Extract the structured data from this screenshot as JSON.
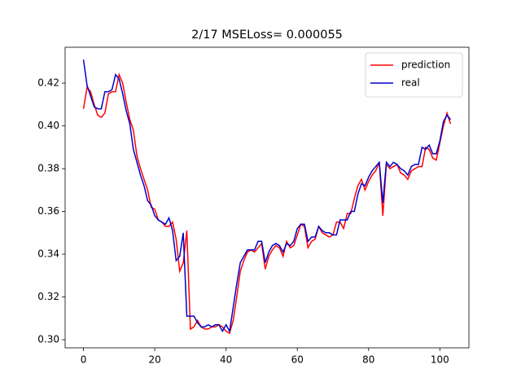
{
  "chart_data": {
    "type": "line",
    "title": "2/17 MSELoss= 0.000055",
    "x": [
      0,
      1,
      2,
      3,
      4,
      5,
      6,
      7,
      8,
      9,
      10,
      11,
      12,
      13,
      14,
      15,
      16,
      17,
      18,
      19,
      20,
      21,
      22,
      23,
      24,
      25,
      26,
      27,
      28,
      29,
      30,
      31,
      32,
      33,
      34,
      35,
      36,
      37,
      38,
      39,
      40,
      41,
      42,
      43,
      44,
      45,
      46,
      47,
      48,
      49,
      50,
      51,
      52,
      53,
      54,
      55,
      56,
      57,
      58,
      59,
      60,
      61,
      62,
      63,
      64,
      65,
      66,
      67,
      68,
      69,
      70,
      71,
      72,
      73,
      74,
      75,
      76,
      77,
      78,
      79,
      80,
      81,
      82,
      83,
      84,
      85,
      86,
      87,
      88,
      89,
      90,
      91,
      92,
      93,
      94,
      95,
      96,
      97,
      98,
      99,
      100,
      101,
      102,
      103
    ],
    "series": [
      {
        "name": "prediction",
        "color": "#ff0000",
        "values": [
          0.408,
          0.418,
          0.416,
          0.41,
          0.405,
          0.404,
          0.406,
          0.415,
          0.416,
          0.416,
          0.424,
          0.42,
          0.411,
          0.403,
          0.398,
          0.386,
          0.38,
          0.375,
          0.37,
          0.362,
          0.361,
          0.356,
          0.355,
          0.353,
          0.353,
          0.355,
          0.347,
          0.332,
          0.336,
          0.351,
          0.305,
          0.306,
          0.309,
          0.306,
          0.305,
          0.305,
          0.306,
          0.306,
          0.307,
          0.306,
          0.304,
          0.303,
          0.309,
          0.32,
          0.332,
          0.337,
          0.341,
          0.342,
          0.341,
          0.343,
          0.345,
          0.333,
          0.339,
          0.342,
          0.344,
          0.343,
          0.339,
          0.346,
          0.343,
          0.344,
          0.349,
          0.354,
          0.353,
          0.343,
          0.346,
          0.347,
          0.353,
          0.35,
          0.349,
          0.348,
          0.349,
          0.355,
          0.355,
          0.352,
          0.359,
          0.359,
          0.366,
          0.372,
          0.375,
          0.37,
          0.374,
          0.377,
          0.379,
          0.383,
          0.358,
          0.382,
          0.38,
          0.381,
          0.382,
          0.378,
          0.377,
          0.375,
          0.379,
          0.38,
          0.381,
          0.381,
          0.39,
          0.389,
          0.385,
          0.384,
          0.392,
          0.4,
          0.406,
          0.401
        ]
      },
      {
        "name": "real",
        "color": "#0000cc",
        "values": [
          0.431,
          0.419,
          0.414,
          0.409,
          0.408,
          0.408,
          0.416,
          0.416,
          0.417,
          0.424,
          0.422,
          0.415,
          0.407,
          0.401,
          0.389,
          0.383,
          0.377,
          0.372,
          0.365,
          0.363,
          0.358,
          0.356,
          0.355,
          0.354,
          0.357,
          0.351,
          0.337,
          0.339,
          0.35,
          0.311,
          0.311,
          0.311,
          0.308,
          0.306,
          0.306,
          0.307,
          0.306,
          0.307,
          0.307,
          0.304,
          0.307,
          0.304,
          0.315,
          0.326,
          0.336,
          0.339,
          0.342,
          0.342,
          0.342,
          0.346,
          0.346,
          0.336,
          0.341,
          0.344,
          0.345,
          0.344,
          0.341,
          0.345,
          0.344,
          0.346,
          0.352,
          0.354,
          0.354,
          0.346,
          0.348,
          0.348,
          0.353,
          0.351,
          0.35,
          0.35,
          0.349,
          0.349,
          0.356,
          0.356,
          0.356,
          0.36,
          0.36,
          0.368,
          0.373,
          0.372,
          0.376,
          0.379,
          0.381,
          0.383,
          0.364,
          0.383,
          0.381,
          0.383,
          0.382,
          0.38,
          0.379,
          0.377,
          0.381,
          0.382,
          0.382,
          0.39,
          0.389,
          0.391,
          0.387,
          0.387,
          0.393,
          0.402,
          0.405,
          0.403
        ]
      }
    ],
    "xlim": [
      -5.15,
      108.15
    ],
    "xticks": [
      0,
      20,
      40,
      60,
      80,
      100
    ],
    "ylim": [
      0.2962,
      0.4368
    ],
    "yticks": [
      {
        "value": 0.3,
        "label": "0.30"
      },
      0.32,
      0.34,
      0.36,
      0.38,
      {
        "value": 0.4,
        "label": "0.40"
      },
      0.42
    ],
    "legend": "upper right"
  }
}
